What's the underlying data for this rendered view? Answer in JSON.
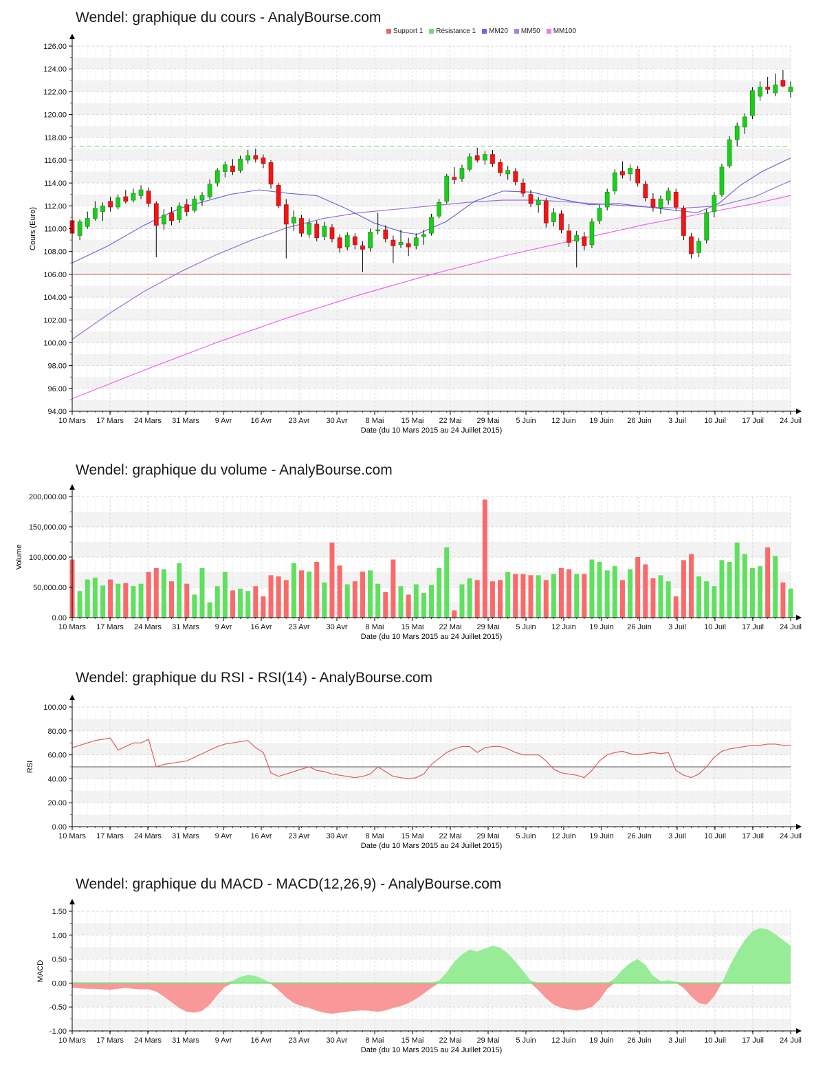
{
  "chart_data": [
    {
      "type": "candlestick",
      "title": "Wendel: graphique du cours - AnalyBourse.com",
      "ylabel": "Cours (Euro)",
      "xlabel": "Date (du 10 Mars 2015 au 24 Juillet 2015)",
      "ylim": [
        94,
        126
      ],
      "ytick": 2,
      "band": 1,
      "grid": true,
      "legend_position": "top-center",
      "xticks": [
        "10 Mars",
        "17 Mars",
        "24 Mars",
        "31 Mars",
        "9 Avr",
        "16 Avr",
        "23 Avr",
        "30 Avr",
        "8 Mai",
        "15 Mai",
        "22 Mai",
        "29 Mai",
        "5 Juin",
        "12 Juin",
        "19 Juin",
        "26 Juin",
        "3 Juil",
        "10 Juil",
        "17 Juil",
        "24 Juil"
      ],
      "legend": [
        {
          "label": "Support 1",
          "color": "#e06a6a"
        },
        {
          "label": "Résistance 1",
          "color": "#7ed47e"
        },
        {
          "label": "MM20",
          "color": "#6a6ae6"
        },
        {
          "label": "MM50",
          "color": "#a97fe8"
        },
        {
          "label": "MM100",
          "color": "#f07af0"
        }
      ],
      "support1": 106.0,
      "resistance1": 117.2,
      "ohlc": [
        [
          110.7,
          111.0,
          109.1,
          109.6
        ],
        [
          109.4,
          110.8,
          109.0,
          110.6
        ],
        [
          110.2,
          111.5,
          110.0,
          110.9
        ],
        [
          110.9,
          112.4,
          110.7,
          111.8
        ],
        [
          111.5,
          112.3,
          110.7,
          112.0
        ],
        [
          112.4,
          112.8,
          111.5,
          111.9
        ],
        [
          111.9,
          113.0,
          111.7,
          112.7
        ],
        [
          112.8,
          113.4,
          112.2,
          112.4
        ],
        [
          112.5,
          113.5,
          112.3,
          113.1
        ],
        [
          112.9,
          113.8,
          112.6,
          113.4
        ],
        [
          113.3,
          113.6,
          111.9,
          112.2
        ],
        [
          112.2,
          112.4,
          107.5,
          110.3
        ],
        [
          110.4,
          111.7,
          109.9,
          111.2
        ],
        [
          111.4,
          111.9,
          110.3,
          110.7
        ],
        [
          110.8,
          112.3,
          110.5,
          112.0
        ],
        [
          112.1,
          112.6,
          111.1,
          111.5
        ],
        [
          111.6,
          112.9,
          111.4,
          112.6
        ],
        [
          112.5,
          113.2,
          112.0,
          112.9
        ],
        [
          112.8,
          114.3,
          112.6,
          113.9
        ],
        [
          114.0,
          115.3,
          113.7,
          115.1
        ],
        [
          115.0,
          115.9,
          114.5,
          115.6
        ],
        [
          115.5,
          116.1,
          114.7,
          115.0
        ],
        [
          115.1,
          116.4,
          114.9,
          116.1
        ],
        [
          116.0,
          116.9,
          115.7,
          116.4
        ],
        [
          116.4,
          117.0,
          115.8,
          116.1
        ],
        [
          116.2,
          116.5,
          115.3,
          115.7
        ],
        [
          115.8,
          116.0,
          113.5,
          113.9
        ],
        [
          113.8,
          114.0,
          111.8,
          112.0
        ],
        [
          112.1,
          112.6,
          107.4,
          110.4
        ],
        [
          110.5,
          111.6,
          109.8,
          111.0
        ],
        [
          110.9,
          111.2,
          109.3,
          109.6
        ],
        [
          109.5,
          110.9,
          109.2,
          110.5
        ],
        [
          110.4,
          110.7,
          108.9,
          109.2
        ],
        [
          109.3,
          110.6,
          109.0,
          110.2
        ],
        [
          110.1,
          110.4,
          108.8,
          109.1
        ],
        [
          109.2,
          109.5,
          107.9,
          108.3
        ],
        [
          108.4,
          109.7,
          108.1,
          109.4
        ],
        [
          109.3,
          109.6,
          108.2,
          108.6
        ],
        [
          108.5,
          108.9,
          106.2,
          108.2
        ],
        [
          108.3,
          110.0,
          108.0,
          109.7
        ],
        [
          109.8,
          111.4,
          109.5,
          109.9
        ],
        [
          109.9,
          110.3,
          108.8,
          109.1
        ],
        [
          109.0,
          109.4,
          107.0,
          108.5
        ],
        [
          108.6,
          109.9,
          108.3,
          108.8
        ],
        [
          108.7,
          109.2,
          107.6,
          108.4
        ],
        [
          108.5,
          109.6,
          108.2,
          109.2
        ],
        [
          109.3,
          109.9,
          108.6,
          109.5
        ],
        [
          109.6,
          111.3,
          109.4,
          111.0
        ],
        [
          111.1,
          112.6,
          110.9,
          112.3
        ],
        [
          112.4,
          114.8,
          112.2,
          114.6
        ],
        [
          114.5,
          115.4,
          113.9,
          114.3
        ],
        [
          114.4,
          115.6,
          114.1,
          115.3
        ],
        [
          115.2,
          116.6,
          115.0,
          116.3
        ],
        [
          116.4,
          117.1,
          115.8,
          116.0
        ],
        [
          116.0,
          116.8,
          115.6,
          116.5
        ],
        [
          116.5,
          116.9,
          115.4,
          115.7
        ],
        [
          115.8,
          116.1,
          114.6,
          114.9
        ],
        [
          114.8,
          115.5,
          114.3,
          115.1
        ],
        [
          115.0,
          115.3,
          113.8,
          114.1
        ],
        [
          114.0,
          114.4,
          112.8,
          113.1
        ],
        [
          113.0,
          113.4,
          111.9,
          112.2
        ],
        [
          112.1,
          112.8,
          111.4,
          112.5
        ],
        [
          112.4,
          112.7,
          110.1,
          110.5
        ],
        [
          110.6,
          111.8,
          110.2,
          111.4
        ],
        [
          111.3,
          111.6,
          109.6,
          109.9
        ],
        [
          109.8,
          110.4,
          108.4,
          108.8
        ],
        [
          108.9,
          109.8,
          106.6,
          109.4
        ],
        [
          109.3,
          109.7,
          108.1,
          108.5
        ],
        [
          108.6,
          110.9,
          108.3,
          110.6
        ],
        [
          110.7,
          112.1,
          110.4,
          111.8
        ],
        [
          111.9,
          113.5,
          111.6,
          113.2
        ],
        [
          113.3,
          115.2,
          113.0,
          114.9
        ],
        [
          115.0,
          115.9,
          114.4,
          114.7
        ],
        [
          114.8,
          115.6,
          114.2,
          115.3
        ],
        [
          115.2,
          115.5,
          113.7,
          114.0
        ],
        [
          113.9,
          114.2,
          112.4,
          112.7
        ],
        [
          112.6,
          113.1,
          111.5,
          111.9
        ],
        [
          111.8,
          112.9,
          111.3,
          112.6
        ],
        [
          112.5,
          113.6,
          112.1,
          113.3
        ],
        [
          113.2,
          113.5,
          111.6,
          111.9
        ],
        [
          111.8,
          112.0,
          109.0,
          109.4
        ],
        [
          109.3,
          109.6,
          107.4,
          107.8
        ],
        [
          107.9,
          109.2,
          107.5,
          108.9
        ],
        [
          109.0,
          111.7,
          108.7,
          111.4
        ],
        [
          111.5,
          113.2,
          111.0,
          112.9
        ],
        [
          113.0,
          115.7,
          112.8,
          115.4
        ],
        [
          115.5,
          118.1,
          115.3,
          117.8
        ],
        [
          117.8,
          119.3,
          117.2,
          119.0
        ],
        [
          118.9,
          120.1,
          118.3,
          119.8
        ],
        [
          119.9,
          122.4,
          119.6,
          122.1
        ],
        [
          121.6,
          122.9,
          121.2,
          122.4
        ],
        [
          122.4,
          123.3,
          121.8,
          122.2
        ],
        [
          121.9,
          123.6,
          121.6,
          122.6
        ],
        [
          123.0,
          123.9,
          122.4,
          122.5
        ],
        [
          122.0,
          122.9,
          121.5,
          122.4
        ]
      ],
      "mm20": [
        [
          0,
          107.0
        ],
        [
          0.05,
          108.5
        ],
        [
          0.1,
          110.3
        ],
        [
          0.15,
          111.8
        ],
        [
          0.22,
          113.0
        ],
        [
          0.26,
          113.4
        ],
        [
          0.3,
          113.1
        ],
        [
          0.34,
          112.9
        ],
        [
          0.38,
          111.8
        ],
        [
          0.42,
          110.5
        ],
        [
          0.46,
          109.7
        ],
        [
          0.48,
          109.5
        ],
        [
          0.52,
          110.6
        ],
        [
          0.56,
          112.4
        ],
        [
          0.6,
          113.3
        ],
        [
          0.64,
          113.2
        ],
        [
          0.68,
          112.6
        ],
        [
          0.72,
          112.1
        ],
        [
          0.76,
          112.2
        ],
        [
          0.8,
          111.9
        ],
        [
          0.84,
          111.6
        ],
        [
          0.87,
          111.4
        ],
        [
          0.9,
          112.2
        ],
        [
          0.93,
          113.8
        ],
        [
          0.96,
          115.0
        ],
        [
          1,
          116.2
        ]
      ],
      "mm50": [
        [
          0,
          100.3
        ],
        [
          0.05,
          102.5
        ],
        [
          0.1,
          104.5
        ],
        [
          0.15,
          106.2
        ],
        [
          0.2,
          107.7
        ],
        [
          0.25,
          109.0
        ],
        [
          0.3,
          110.1
        ],
        [
          0.35,
          110.9
        ],
        [
          0.4,
          111.4
        ],
        [
          0.45,
          111.7
        ],
        [
          0.5,
          112.0
        ],
        [
          0.55,
          112.3
        ],
        [
          0.6,
          112.5
        ],
        [
          0.65,
          112.5
        ],
        [
          0.7,
          112.3
        ],
        [
          0.75,
          112.1
        ],
        [
          0.8,
          111.9
        ],
        [
          0.85,
          111.8
        ],
        [
          0.9,
          112.0
        ],
        [
          0.95,
          112.8
        ],
        [
          1,
          114.2
        ]
      ],
      "mm100": [
        [
          0,
          95.1
        ],
        [
          0.1,
          97.6
        ],
        [
          0.2,
          100.0
        ],
        [
          0.3,
          102.2
        ],
        [
          0.4,
          104.2
        ],
        [
          0.5,
          106.0
        ],
        [
          0.6,
          107.6
        ],
        [
          0.7,
          109.0
        ],
        [
          0.75,
          109.7
        ],
        [
          0.8,
          110.4
        ],
        [
          0.85,
          111.0
        ],
        [
          0.9,
          111.6
        ],
        [
          0.95,
          112.2
        ],
        [
          1,
          112.9
        ]
      ],
      "colors": {
        "up": "#1ecc1e",
        "up_edge": "#0fa00f",
        "down": "#f11515",
        "down_edge": "#bd0e0e",
        "wick": "#000000",
        "support": "#c97272",
        "resistance": "#88d888",
        "mm20": "#6a6ae0",
        "mm50": "#9b6fd6",
        "mm100": "#ee66ee"
      }
    },
    {
      "type": "bar",
      "title": "Wendel: graphique du volume - AnalyBourse.com",
      "ylabel": "Volume",
      "xlabel": "Date (du 10 Mars 2015 au 24 Juillet 2015)",
      "ylim": [
        0,
        200000
      ],
      "ytick": 50000,
      "band": 25000,
      "xticks": [
        "10 Mars",
        "17 Mars",
        "24 Mars",
        "31 Mars",
        "9 Avr",
        "16 Avr",
        "23 Avr",
        "30 Avr",
        "8 Mai",
        "15 Mai",
        "22 Mai",
        "29 Mai",
        "5 Juin",
        "12 Juin",
        "19 Juin",
        "26 Juin",
        "3 Juil",
        "10 Juil",
        "17 Juil",
        "24 Juil"
      ],
      "values": [
        96000,
        44000,
        63000,
        66000,
        53000,
        63000,
        56000,
        57000,
        52000,
        56000,
        75000,
        82000,
        80000,
        60000,
        90000,
        56000,
        38000,
        82000,
        25000,
        52000,
        75000,
        45000,
        48000,
        44000,
        52000,
        35000,
        70000,
        68000,
        62000,
        90000,
        78000,
        76000,
        92000,
        58000,
        124000,
        86000,
        55000,
        60000,
        76000,
        78000,
        56000,
        42000,
        96000,
        52000,
        38000,
        55000,
        41000,
        54000,
        82000,
        116000,
        12000,
        55000,
        65000,
        62000,
        195000,
        60000,
        62000,
        75000,
        72000,
        72000,
        70000,
        70000,
        62000,
        72000,
        82000,
        80000,
        72000,
        72000,
        96000,
        92000,
        78000,
        85000,
        62000,
        80000,
        100000,
        88000,
        65000,
        70000,
        60000,
        35000,
        95000,
        105000,
        68000,
        60000,
        52000,
        95000,
        92000,
        124000,
        105000,
        82000,
        85000,
        116000,
        102000,
        58000,
        48000
      ],
      "down_overrides": [
        54
      ],
      "colors": {
        "up": "#5fe05f",
        "down": "#f96a6a"
      }
    },
    {
      "type": "line",
      "title": "Wendel: graphique du RSI - RSI(14) - AnalyBourse.com",
      "ylabel": "RSI",
      "xlabel": "Date (du 10 Mars 2015 au 24 Juillet 2015)",
      "ylim": [
        0,
        100
      ],
      "ytick": 20,
      "band": 10,
      "midline": 50,
      "xticks": [
        "10 Mars",
        "17 Mars",
        "24 Mars",
        "31 Mars",
        "9 Avr",
        "16 Avr",
        "23 Avr",
        "30 Avr",
        "8 Mai",
        "15 Mai",
        "22 Mai",
        "29 Mai",
        "5 Juin",
        "12 Juin",
        "19 Juin",
        "26 Juin",
        "3 Juil",
        "10 Juil",
        "17 Juil",
        "24 Juil"
      ],
      "values": [
        66,
        68,
        70,
        72,
        73,
        74,
        64,
        67,
        70,
        70,
        73,
        50,
        52,
        53,
        54,
        55,
        58,
        61,
        64,
        67,
        69,
        70,
        71,
        72,
        66,
        62,
        45,
        42,
        44,
        46,
        48,
        50,
        47,
        46,
        44,
        43,
        42,
        41,
        42,
        44,
        50,
        46,
        42,
        41,
        40,
        41,
        44,
        52,
        57,
        62,
        65,
        67,
        67,
        62,
        66,
        67,
        67,
        65,
        62,
        60,
        60,
        60,
        55,
        48,
        45,
        44,
        43,
        41,
        47,
        55,
        60,
        62,
        63,
        61,
        60,
        61,
        62,
        61,
        62,
        47,
        43,
        41,
        44,
        50,
        58,
        63,
        65,
        66,
        67,
        68,
        68,
        69,
        69,
        68,
        68
      ],
      "colors": {
        "line": "#e05c5c",
        "midline": "#555555"
      }
    },
    {
      "type": "area",
      "title": "Wendel: graphique du MACD - MACD(12,26,9) - AnalyBourse.com",
      "ylabel": "MACD",
      "xlabel": "Date (du 10 Mars 2015 au 24 Juillet 2015)",
      "ylim": [
        -1.0,
        1.5
      ],
      "ytick": 0.5,
      "band": 0.25,
      "zeroline": 0,
      "xticks": [
        "10 Mars",
        "17 Mars",
        "24 Mars",
        "31 Mars",
        "9 Avr",
        "16 Avr",
        "23 Avr",
        "30 Avr",
        "8 Mai",
        "15 Mai",
        "22 Mai",
        "29 Mai",
        "5 Juin",
        "12 Juin",
        "19 Juin",
        "26 Juin",
        "3 Juil",
        "10 Juil",
        "17 Juil",
        "24 Juil"
      ],
      "values": [
        -0.1,
        -0.11,
        -0.12,
        -0.12,
        -0.13,
        -0.14,
        -0.12,
        -0.1,
        -0.12,
        -0.13,
        -0.13,
        -0.18,
        -0.28,
        -0.4,
        -0.52,
        -0.6,
        -0.62,
        -0.58,
        -0.45,
        -0.25,
        -0.08,
        0.05,
        0.13,
        0.17,
        0.15,
        0.08,
        -0.02,
        -0.15,
        -0.3,
        -0.42,
        -0.48,
        -0.52,
        -0.58,
        -0.62,
        -0.64,
        -0.62,
        -0.6,
        -0.58,
        -0.57,
        -0.58,
        -0.6,
        -0.57,
        -0.52,
        -0.48,
        -0.42,
        -0.33,
        -0.22,
        -0.1,
        0.05,
        0.22,
        0.45,
        0.6,
        0.7,
        0.66,
        0.72,
        0.78,
        0.74,
        0.62,
        0.45,
        0.25,
        0.05,
        -0.15,
        -0.32,
        -0.45,
        -0.52,
        -0.55,
        -0.57,
        -0.55,
        -0.5,
        -0.35,
        -0.12,
        0.1,
        0.28,
        0.42,
        0.5,
        0.38,
        0.15,
        0.04,
        0.06,
        0.03,
        -0.1,
        -0.28,
        -0.42,
        -0.45,
        -0.28,
        0.0,
        0.35,
        0.65,
        0.9,
        1.08,
        1.15,
        1.12,
        1.02,
        0.9,
        0.78
      ],
      "colors": {
        "positive": "#98ec98",
        "negative": "#f89898",
        "zeroline": "#7de07d"
      }
    }
  ]
}
